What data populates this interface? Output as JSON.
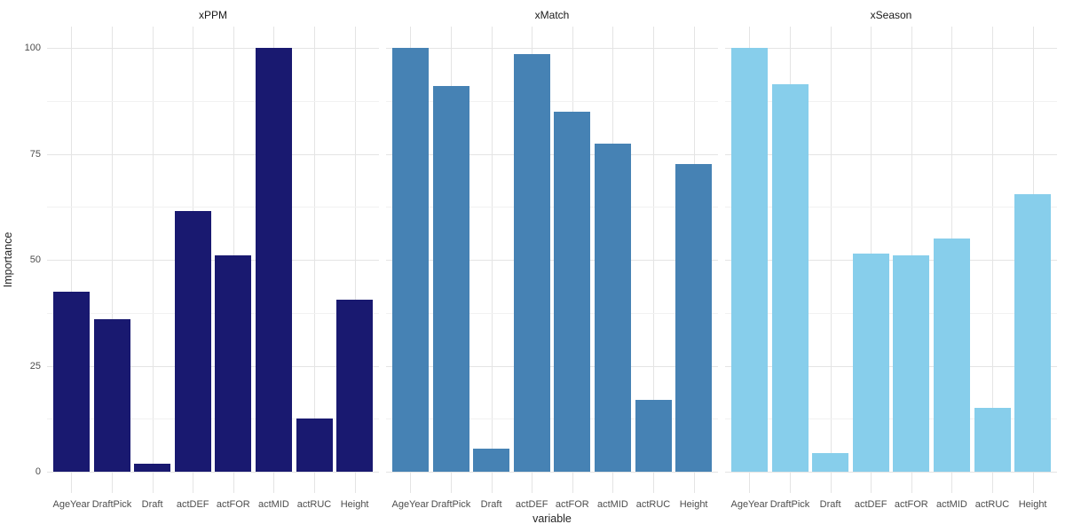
{
  "chart_data": {
    "type": "bar",
    "title": "",
    "xlabel": "variable",
    "ylabel": "Importance",
    "ylim": [
      0,
      100
    ],
    "y_major_ticks": [
      0,
      25,
      50,
      75,
      100
    ],
    "y_minor_ticks": [
      12.5,
      37.5,
      62.5,
      87.5
    ],
    "grid": "major-and-minor-horizontal, major-vertical-at-categories",
    "legend_position": "none",
    "categories": [
      "AgeYear",
      "DraftPick",
      "Draft",
      "actDEF",
      "actFOR",
      "actMID",
      "actRUC",
      "Height"
    ],
    "facets": [
      {
        "label": "xPPM",
        "color": "#191970",
        "values": [
          42.5,
          36,
          2,
          61.5,
          51,
          100,
          12.5,
          40.5
        ]
      },
      {
        "label": "xMatch",
        "color": "#4682B4",
        "values": [
          100,
          91,
          5.5,
          98.5,
          85,
          77.5,
          17,
          72.5
        ]
      },
      {
        "label": "xSeason",
        "color": "#87CEEB",
        "values": [
          100,
          91.5,
          4.5,
          51.5,
          51,
          55,
          15,
          65.5
        ]
      }
    ]
  }
}
